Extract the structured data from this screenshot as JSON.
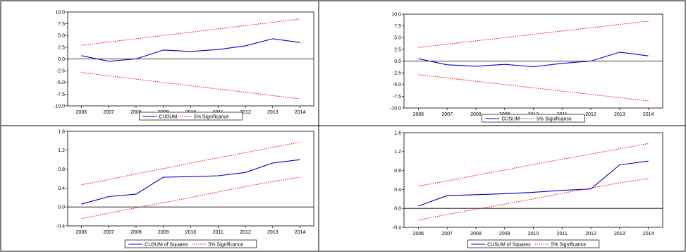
{
  "chart_data": [
    {
      "type": "line",
      "x": [
        2006,
        2007,
        2008,
        2009,
        2010,
        2011,
        2012,
        2013,
        2014
      ],
      "ylim": [
        -10,
        10
      ],
      "yticks": [
        -10,
        -7.5,
        -5,
        -2.5,
        0,
        2.5,
        5,
        7.5,
        10
      ],
      "ytick_labels": [
        "-10.0",
        "-7.5",
        "-5.0",
        "-2.5",
        "0.0",
        "2.5",
        "5.0",
        "7.5",
        "10.0"
      ],
      "series": [
        {
          "name": "CUSUM",
          "color": "#0000cc",
          "style": "solid",
          "values": [
            0.7,
            -0.5,
            0.0,
            1.9,
            1.6,
            2.0,
            2.8,
            4.3,
            3.5
          ]
        },
        {
          "name": "5% Significance",
          "color": "#ff0000",
          "style": "dotted",
          "values": [
            2.9,
            3.6,
            4.3,
            5.0,
            5.7,
            6.4,
            7.1,
            7.8,
            8.5
          ]
        },
        {
          "name": "",
          "color": "#ff0000",
          "style": "dotted",
          "values": [
            -2.9,
            -3.6,
            -4.3,
            -5.0,
            -5.7,
            -6.4,
            -7.1,
            -7.8,
            -8.5
          ]
        }
      ],
      "legend": [
        "CUSUM",
        "5% Significance"
      ]
    },
    {
      "type": "line",
      "x": [
        2006,
        2007,
        2008,
        2009,
        2010,
        2011,
        2012,
        2013,
        2014
      ],
      "ylim": [
        -10,
        10
      ],
      "yticks": [
        -10,
        -7.5,
        -5,
        -2.5,
        0,
        2.5,
        5,
        7.5,
        10
      ],
      "ytick_labels": [
        "-10.0",
        "-7.5",
        "-5.0",
        "-2.5",
        "0.0",
        "2.5",
        "5.0",
        "7.5",
        "10.0"
      ],
      "series": [
        {
          "name": "CUSUM",
          "color": "#0000cc",
          "style": "solid",
          "values": [
            0.5,
            -0.8,
            -1.1,
            -0.7,
            -1.2,
            -0.5,
            0.0,
            1.9,
            1.1
          ]
        },
        {
          "name": "5% Significance",
          "color": "#ff0000",
          "style": "dotted",
          "values": [
            2.9,
            3.6,
            4.3,
            5.0,
            5.7,
            6.4,
            7.1,
            7.8,
            8.5
          ]
        },
        {
          "name": "",
          "color": "#ff0000",
          "style": "dotted",
          "values": [
            -2.9,
            -3.6,
            -4.3,
            -5.0,
            -5.7,
            -6.4,
            -7.1,
            -7.8,
            -8.5
          ]
        }
      ],
      "legend": [
        "CUSUM",
        "5% Significance"
      ]
    },
    {
      "type": "line",
      "x": [
        2006,
        2007,
        2008,
        2009,
        2010,
        2011,
        2012,
        2013,
        2014
      ],
      "ylim": [
        -0.4,
        1.6
      ],
      "yticks": [
        -0.4,
        0.0,
        0.4,
        0.8,
        1.2,
        1.6
      ],
      "ytick_labels": [
        "-0.4",
        "0.0",
        "0.4",
        "0.8",
        "1.2",
        "1.6"
      ],
      "series": [
        {
          "name": "CUSUM of Squares",
          "color": "#0000cc",
          "style": "solid",
          "values": [
            0.06,
            0.22,
            0.27,
            0.63,
            0.64,
            0.66,
            0.73,
            0.93,
            1.0
          ]
        },
        {
          "name": "5% Significance",
          "color": "#ff0000",
          "style": "dotted",
          "values": [
            0.47,
            0.58,
            0.7,
            0.81,
            0.93,
            1.04,
            1.15,
            1.26,
            1.37
          ]
        },
        {
          "name": "",
          "color": "#ff0000",
          "style": "dotted",
          "values": [
            -0.25,
            -0.13,
            -0.02,
            0.09,
            0.2,
            0.32,
            0.43,
            0.54,
            0.63
          ]
        }
      ],
      "legend": [
        "CUSUM of Squares",
        "5% Significance"
      ]
    },
    {
      "type": "line",
      "x": [
        2006,
        2007,
        2008,
        2009,
        2010,
        2011,
        2012,
        2013,
        2014
      ],
      "ylim": [
        -0.4,
        1.6
      ],
      "yticks": [
        -0.4,
        0.0,
        0.4,
        0.8,
        1.2,
        1.6
      ],
      "ytick_labels": [
        "-0.4",
        "0.0",
        "0.4",
        "0.8",
        "1.2",
        "1.6"
      ],
      "series": [
        {
          "name": "CUSUM of Squares",
          "color": "#0000cc",
          "style": "solid",
          "values": [
            0.05,
            0.27,
            0.29,
            0.31,
            0.34,
            0.38,
            0.41,
            0.92,
            1.0
          ]
        },
        {
          "name": "5% Significance",
          "color": "#ff0000",
          "style": "dotted",
          "values": [
            0.47,
            0.58,
            0.7,
            0.81,
            0.93,
            1.04,
            1.15,
            1.26,
            1.37
          ]
        },
        {
          "name": "",
          "color": "#ff0000",
          "style": "dotted",
          "values": [
            -0.25,
            -0.13,
            -0.02,
            0.09,
            0.2,
            0.32,
            0.43,
            0.54,
            0.63
          ]
        }
      ],
      "legend": [
        "CUSUM of Squares",
        "5% Significance"
      ]
    }
  ]
}
